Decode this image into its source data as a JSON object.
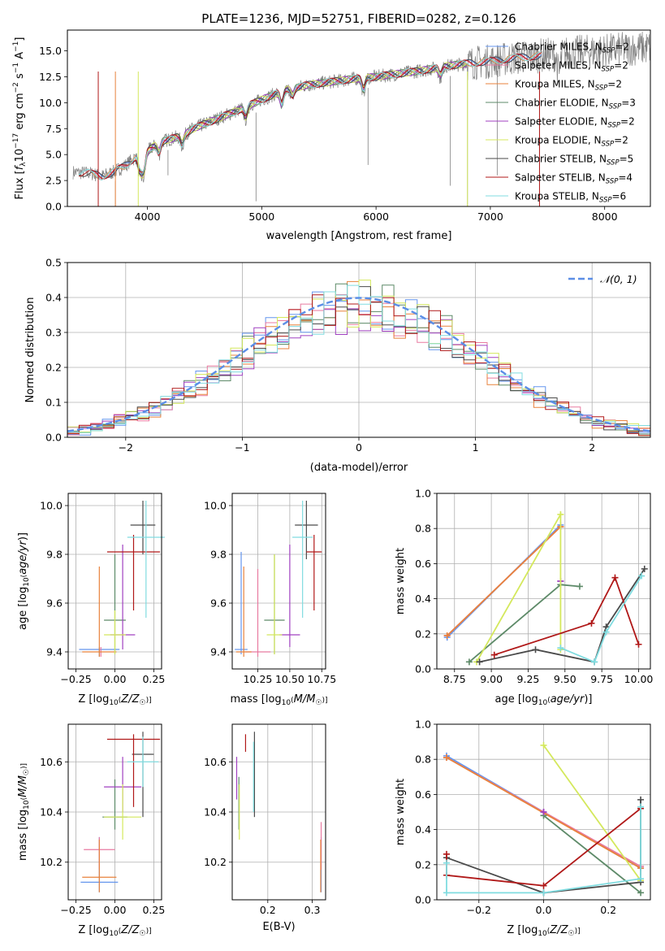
{
  "figure_title": "PLATE=1236, MJD=52751, FIBERID=0282, z=0.126",
  "colors": {
    "chabrier_miles": "#6495ed",
    "salpeter_miles": "#e87aa0",
    "kroupa_miles": "#e8823c",
    "chabrier_elodie": "#5d8a68",
    "salpeter_elodie": "#a040c0",
    "kroupa_elodie": "#d4e85c",
    "chabrier_stelib": "#4a4a4a",
    "salpeter_stelib": "#b01818",
    "kroupa_stelib": "#80dce0",
    "data": "#808080",
    "normal": "#5b8ee6"
  },
  "chart_data": [
    {
      "id": "spectrum",
      "type": "line",
      "xlabel": "wavelength [Angstrom, rest frame]",
      "ylabel": "Flux [f_λ 10^-17 erg cm^-2 s^-1 A^-1]",
      "xlim": [
        3300,
        8400
      ],
      "ylim": [
        0,
        17
      ],
      "xticks": [
        4000,
        5000,
        6000,
        7000,
        8000
      ],
      "yticks": [
        0.0,
        2.5,
        5.0,
        7.5,
        10.0,
        12.5,
        15.0
      ],
      "grid": false,
      "legend_position": "top-right",
      "legend": [
        {
          "label": "Chabrier MILES, N",
          "sub": "SSP",
          "tail": "=2",
          "color_key": "chabrier_miles"
        },
        {
          "label": "Salpeter MILES, N",
          "sub": "SSP",
          "tail": "=2",
          "color_key": "salpeter_miles"
        },
        {
          "label": "Kroupa MILES, N",
          "sub": "SSP",
          "tail": "=2",
          "color_key": "kroupa_miles"
        },
        {
          "label": "Chabrier ELODIE, N",
          "sub": "SSP",
          "tail": "=3",
          "color_key": "chabrier_elodie"
        },
        {
          "label": "Salpeter ELODIE, N",
          "sub": "SSP",
          "tail": "=2",
          "color_key": "salpeter_elodie"
        },
        {
          "label": "Kroupa ELODIE, N",
          "sub": "SSP",
          "tail": "=2",
          "color_key": "kroupa_elodie"
        },
        {
          "label": "Chabrier STELIB, N",
          "sub": "SSP",
          "tail": "=5",
          "color_key": "chabrier_stelib"
        },
        {
          "label": "Salpeter STELIB, N",
          "sub": "SSP",
          "tail": "=4",
          "color_key": "salpeter_stelib"
        },
        {
          "label": "Kroupa STELIB, N",
          "sub": "SSP",
          "tail": "=6",
          "color_key": "kroupa_stelib"
        }
      ],
      "continuum": [
        [
          3350,
          3.3
        ],
        [
          3500,
          3.2
        ],
        [
          3600,
          2.9
        ],
        [
          3700,
          3.3
        ],
        [
          3800,
          3.9
        ],
        [
          3900,
          4.8
        ],
        [
          3950,
          4.2
        ],
        [
          4000,
          5.3
        ],
        [
          4100,
          6.2
        ],
        [
          4300,
          6.8
        ],
        [
          4400,
          7.5
        ],
        [
          4600,
          8.4
        ],
        [
          4800,
          9.3
        ],
        [
          5000,
          10.3
        ],
        [
          5200,
          11.2
        ],
        [
          5400,
          11.7
        ],
        [
          5600,
          12.0
        ],
        [
          5800,
          12.3
        ],
        [
          6000,
          12.5
        ],
        [
          6200,
          12.8
        ],
        [
          6400,
          13.1
        ],
        [
          6600,
          13.5
        ],
        [
          6800,
          13.8
        ],
        [
          7000,
          14.0
        ],
        [
          7200,
          14.3
        ],
        [
          7400,
          14.5
        ],
        [
          7600,
          14.7
        ],
        [
          7800,
          14.9
        ],
        [
          8000,
          15.0
        ],
        [
          8200,
          15.2
        ],
        [
          8400,
          15.3
        ]
      ],
      "absorption_dips": [
        [
          3933,
          1.3
        ],
        [
          3968,
          1.8
        ],
        [
          4101,
          1.2
        ],
        [
          4304,
          1.0
        ],
        [
          4861,
          1.2
        ],
        [
          5175,
          1.6
        ],
        [
          5270,
          0.8
        ],
        [
          5890,
          1.4
        ],
        [
          6563,
          1.0
        ],
        [
          7600,
          2.0
        ]
      ],
      "spikes_down": [
        [
          3570,
          0
        ],
        [
          3720,
          0
        ],
        [
          4180,
          3.0
        ],
        [
          4950,
          0.5
        ],
        [
          5930,
          4.0
        ],
        [
          6650,
          2.0
        ],
        [
          6800,
          0
        ],
        [
          7060,
          3.0
        ],
        [
          7430,
          0
        ]
      ]
    },
    {
      "id": "residuals",
      "type": "histogram",
      "xlabel": "(data-model)/error",
      "ylabel": "Normed distribution",
      "xlim": [
        -2.5,
        2.5
      ],
      "ylim": [
        0,
        0.5
      ],
      "xticks": [
        -2,
        -1,
        0,
        1,
        2
      ],
      "yticks": [
        0.0,
        0.1,
        0.2,
        0.3,
        0.4,
        0.5
      ],
      "grid": true,
      "bin_width": 0.1,
      "normal_label": "𝒩(0, 1)",
      "legend_position": "top-right",
      "note": "nine model residual histograms following a standard normal shape"
    },
    {
      "id": "age_vs_Z",
      "type": "errorbar",
      "xlabel": "Z [log10(Z/Z☉)]",
      "ylabel": "age [log10(age/yr)]",
      "xlim": [
        -0.3,
        0.3
      ],
      "ylim": [
        9.33,
        10.05
      ],
      "xticks": [
        -0.25,
        0.0,
        0.25
      ],
      "yticks": [
        9.4,
        9.6,
        9.8,
        10.0
      ],
      "grid": true,
      "points": [
        {
          "key": "chabrier_miles",
          "x": -0.1,
          "xerr": 0.13,
          "y": 9.41,
          "yerr_lo": 0.03,
          "yerr_hi": 0.01
        },
        {
          "key": "salpeter_miles",
          "x": -0.09,
          "xerr": 0.0,
          "y": 9.4,
          "yerr_lo": 0.02,
          "yerr_hi": 0.02
        },
        {
          "key": "kroupa_miles",
          "x": -0.1,
          "xerr": 0.11,
          "y": 9.4,
          "yerr_lo": 0.02,
          "yerr_hi": 0.35
        },
        {
          "key": "chabrier_elodie",
          "x": 0.0,
          "xerr": 0.07,
          "y": 9.53,
          "yerr_lo": 0.14,
          "yerr_hi": 0.27
        },
        {
          "key": "salpeter_elodie",
          "x": 0.05,
          "xerr": 0.08,
          "y": 9.47,
          "yerr_lo": 0.06,
          "yerr_hi": 0.37
        },
        {
          "key": "kroupa_elodie",
          "x": 0.0,
          "xerr": 0.07,
          "y": 9.47,
          "yerr_lo": 0.08,
          "yerr_hi": 0.1
        },
        {
          "key": "chabrier_stelib",
          "x": 0.18,
          "xerr": 0.08,
          "y": 9.92,
          "yerr_lo": 0.12,
          "yerr_hi": 0.1
        },
        {
          "key": "salpeter_stelib",
          "x": 0.12,
          "xerr": 0.17,
          "y": 9.81,
          "yerr_lo": 0.24,
          "yerr_hi": 0.07
        },
        {
          "key": "kroupa_stelib",
          "x": 0.2,
          "xerr": 0.12,
          "y": 9.87,
          "yerr_lo": 0.33,
          "yerr_hi": 0.15
        }
      ]
    },
    {
      "id": "age_vs_mass",
      "type": "errorbar",
      "xlabel": "mass [log10(M/M☉)]",
      "ylabel": "",
      "xlim": [
        10.05,
        10.78
      ],
      "ylim": [
        9.33,
        10.05
      ],
      "xticks": [
        10.25,
        10.5,
        10.75
      ],
      "yticks": [
        9.4,
        9.6,
        9.8,
        10.0
      ],
      "grid": true,
      "points": [
        {
          "key": "chabrier_miles",
          "x": 10.12,
          "xerr": 0.05,
          "y": 9.41,
          "yerr_lo": 0.02,
          "yerr_hi": 0.4
        },
        {
          "key": "salpeter_miles",
          "x": 10.25,
          "xerr": 0.1,
          "y": 9.4,
          "yerr_lo": 0.02,
          "yerr_hi": 0.34
        },
        {
          "key": "kroupa_miles",
          "x": 10.14,
          "xerr": 0.06,
          "y": 9.4,
          "yerr_lo": 0.02,
          "yerr_hi": 0.35
        },
        {
          "key": "chabrier_elodie",
          "x": 10.38,
          "xerr": 0.08,
          "y": 9.53,
          "yerr_lo": 0.14,
          "yerr_hi": 0.27
        },
        {
          "key": "salpeter_elodie",
          "x": 10.5,
          "xerr": 0.08,
          "y": 9.47,
          "yerr_lo": 0.05,
          "yerr_hi": 0.37
        },
        {
          "key": "kroupa_elodie",
          "x": 10.38,
          "xerr": 0.06,
          "y": 9.47,
          "yerr_lo": 0.08,
          "yerr_hi": 0.33
        },
        {
          "key": "chabrier_stelib",
          "x": 10.63,
          "xerr": 0.09,
          "y": 9.92,
          "yerr_lo": 0.14,
          "yerr_hi": 0.1
        },
        {
          "key": "salpeter_stelib",
          "x": 10.69,
          "xerr": 0.06,
          "y": 9.81,
          "yerr_lo": 0.24,
          "yerr_hi": 0.07
        },
        {
          "key": "kroupa_stelib",
          "x": 10.6,
          "xerr": 0.08,
          "y": 9.87,
          "yerr_lo": 0.33,
          "yerr_hi": 0.15
        }
      ]
    },
    {
      "id": "weight_vs_age",
      "type": "line",
      "xlabel": "age [log10(age/yr)]",
      "ylabel": "mass weight",
      "xlim": [
        8.63,
        10.08
      ],
      "ylim": [
        0,
        1.0
      ],
      "xticks": [
        8.75,
        9.0,
        9.25,
        9.5,
        9.75,
        10.0
      ],
      "yticks": [
        0.0,
        0.2,
        0.4,
        0.6,
        0.8,
        1.0
      ],
      "grid": true,
      "series": [
        {
          "key": "chabrier_miles",
          "x": [
            8.7,
            9.47
          ],
          "y": [
            0.18,
            0.82
          ]
        },
        {
          "key": "salpeter_miles",
          "x": [
            8.7,
            9.47
          ],
          "y": [
            0.19,
            0.81
          ]
        },
        {
          "key": "kroupa_miles",
          "x": [
            8.7,
            9.47
          ],
          "y": [
            0.19,
            0.81
          ]
        },
        {
          "key": "chabrier_elodie",
          "x": [
            8.85,
            9.47,
            9.6
          ],
          "y": [
            0.04,
            0.48,
            0.47
          ]
        },
        {
          "key": "salpeter_elodie",
          "x": [
            9.47,
            9.47
          ],
          "y": [
            0.5,
            0.5
          ]
        },
        {
          "key": "kroupa_elodie",
          "x": [
            8.9,
            9.47,
            9.47
          ],
          "y": [
            0.04,
            0.88,
            0.11
          ]
        },
        {
          "key": "chabrier_stelib",
          "x": [
            8.92,
            9.3,
            9.7,
            9.78,
            10.04
          ],
          "y": [
            0.04,
            0.11,
            0.04,
            0.24,
            0.57
          ]
        },
        {
          "key": "salpeter_stelib",
          "x": [
            9.02,
            9.68,
            9.84,
            10.0
          ],
          "y": [
            0.08,
            0.26,
            0.52,
            0.14
          ]
        },
        {
          "key": "kroupa_stelib",
          "x": [
            9.47,
            9.7,
            9.78,
            10.02
          ],
          "y": [
            0.12,
            0.04,
            0.21,
            0.53
          ]
        }
      ]
    },
    {
      "id": "mass_vs_Z",
      "type": "errorbar",
      "xlabel": "Z [log10(Z/Z☉)]",
      "ylabel": "mass [log10(M/M☉)]",
      "xlim": [
        -0.3,
        0.3
      ],
      "ylim": [
        10.05,
        10.75
      ],
      "xticks": [
        -0.25,
        0.0,
        0.25
      ],
      "yticks": [
        10.2,
        10.4,
        10.6
      ],
      "grid": true,
      "points": [
        {
          "key": "chabrier_miles",
          "x": -0.1,
          "xerr": 0.12,
          "y": 10.12,
          "yerr_lo": 0.04,
          "yerr_hi": 0.18
        },
        {
          "key": "salpeter_miles",
          "x": -0.1,
          "xerr": 0.1,
          "y": 10.25,
          "yerr_lo": 0.08,
          "yerr_hi": 0.05
        },
        {
          "key": "kroupa_miles",
          "x": -0.1,
          "xerr": 0.11,
          "y": 10.14,
          "yerr_lo": 0.06,
          "yerr_hi": 0.15
        },
        {
          "key": "chabrier_elodie",
          "x": 0.0,
          "xerr": 0.08,
          "y": 10.38,
          "yerr_lo": 0.05,
          "yerr_hi": 0.15
        },
        {
          "key": "salpeter_elodie",
          "x": 0.05,
          "xerr": 0.12,
          "y": 10.5,
          "yerr_lo": 0.1,
          "yerr_hi": 0.12
        },
        {
          "key": "kroupa_elodie",
          "x": 0.05,
          "xerr": 0.12,
          "y": 10.38,
          "yerr_lo": 0.09,
          "yerr_hi": 0.13
        },
        {
          "key": "chabrier_stelib",
          "x": 0.18,
          "xerr": 0.07,
          "y": 10.63,
          "yerr_lo": 0.25,
          "yerr_hi": 0.09
        },
        {
          "key": "salpeter_stelib",
          "x": 0.12,
          "xerr": 0.17,
          "y": 10.69,
          "yerr_lo": 0.27,
          "yerr_hi": 0.02
        },
        {
          "key": "kroupa_stelib",
          "x": 0.18,
          "xerr": 0.1,
          "y": 10.6,
          "yerr_lo": 0.1,
          "yerr_hi": 0.1
        }
      ]
    },
    {
      "id": "mass_vs_ebv",
      "type": "errorbar",
      "xlabel": "E(B-V)",
      "ylabel": "",
      "xlim": [
        0.12,
        0.33
      ],
      "ylim": [
        10.05,
        10.75
      ],
      "xticks": [
        0.2,
        0.3
      ],
      "yticks": [
        10.2,
        10.4,
        10.6
      ],
      "grid": true,
      "points": [
        {
          "key": "chabrier_miles",
          "x": 0.32,
          "xerr": 0.0,
          "y": 10.12,
          "yerr_lo": 0.04,
          "yerr_hi": 0.18
        },
        {
          "key": "salpeter_miles",
          "x": 0.32,
          "xerr": 0.0,
          "y": 10.25,
          "yerr_lo": 0.08,
          "yerr_hi": 0.11
        },
        {
          "key": "kroupa_miles",
          "x": 0.319,
          "xerr": 0.0,
          "y": 10.14,
          "yerr_lo": 0.06,
          "yerr_hi": 0.15
        },
        {
          "key": "chabrier_elodie",
          "x": 0.135,
          "xerr": 0.0,
          "y": 10.38,
          "yerr_lo": 0.05,
          "yerr_hi": 0.16
        },
        {
          "key": "salpeter_elodie",
          "x": 0.13,
          "xerr": 0.0,
          "y": 10.5,
          "yerr_lo": 0.05,
          "yerr_hi": 0.12
        },
        {
          "key": "kroupa_elodie",
          "x": 0.136,
          "xerr": 0.0,
          "y": 10.38,
          "yerr_lo": 0.09,
          "yerr_hi": 0.13
        },
        {
          "key": "chabrier_stelib",
          "x": 0.17,
          "xerr": 0.0,
          "y": 10.63,
          "yerr_lo": 0.25,
          "yerr_hi": 0.09
        },
        {
          "key": "salpeter_stelib",
          "x": 0.15,
          "xerr": 0.0,
          "y": 10.69,
          "yerr_lo": 0.05,
          "yerr_hi": 0.02
        },
        {
          "key": "kroupa_stelib",
          "x": 0.168,
          "xerr": 0.0,
          "y": 10.6,
          "yerr_lo": 0.2,
          "yerr_hi": 0.08
        }
      ]
    },
    {
      "id": "weight_vs_Z",
      "type": "line",
      "xlabel": "Z [log10(Z/Z☉)]",
      "ylabel": "mass weight",
      "xlim": [
        -0.33,
        0.33
      ],
      "ylim": [
        0,
        1.0
      ],
      "xticks": [
        -0.2,
        0.0,
        0.2
      ],
      "yticks": [
        0.0,
        0.2,
        0.4,
        0.6,
        0.8,
        1.0
      ],
      "grid": true,
      "series": [
        {
          "key": "chabrier_miles",
          "x": [
            -0.3,
            0.3
          ],
          "y": [
            0.82,
            0.18
          ]
        },
        {
          "key": "salpeter_miles",
          "x": [
            -0.3,
            0.3
          ],
          "y": [
            0.81,
            0.19
          ]
        },
        {
          "key": "kroupa_miles",
          "x": [
            -0.3,
            0.3
          ],
          "y": [
            0.81,
            0.18
          ]
        },
        {
          "key": "chabrier_elodie",
          "x": [
            0.0,
            0.3
          ],
          "y": [
            0.48,
            0.04
          ]
        },
        {
          "key": "salpeter_elodie",
          "x": [
            0.0,
            0.0
          ],
          "y": [
            0.5,
            0.5
          ]
        },
        {
          "key": "kroupa_elodie",
          "x": [
            0.0,
            0.3
          ],
          "y": [
            0.88,
            0.11
          ]
        },
        {
          "key": "chabrier_stelib",
          "x": [
            -0.3,
            0.0,
            0.3,
            0.3
          ],
          "y": [
            0.24,
            0.04,
            0.1,
            0.57
          ]
        },
        {
          "key": "salpeter_stelib",
          "x": [
            -0.3,
            -0.3,
            0.0,
            0.3
          ],
          "y": [
            0.26,
            0.14,
            0.08,
            0.52
          ]
        },
        {
          "key": "kroupa_stelib",
          "x": [
            -0.3,
            -0.3,
            0.0,
            0.3,
            0.3
          ],
          "y": [
            0.21,
            0.04,
            0.04,
            0.12,
            0.53
          ]
        }
      ]
    }
  ]
}
